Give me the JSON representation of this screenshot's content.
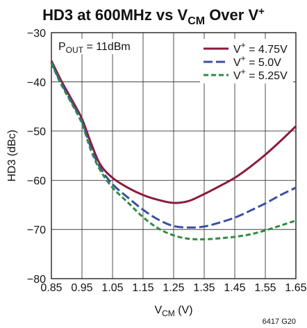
{
  "chart_data": {
    "type": "line",
    "title": {
      "main": "HD3 at 600MHz vs V",
      "sub": "CM",
      "mid": " Over V",
      "sup": "+"
    },
    "ylabel": "HD3 (dBc)",
    "xlabel": {
      "main": "V",
      "sub": "CM",
      "rest": " (V)"
    },
    "xlim": [
      0.85,
      1.65
    ],
    "ylim": [
      -80,
      -30
    ],
    "x_ticks": [
      "0.85",
      "0.95",
      "1.05",
      "1.15",
      "1.25",
      "1.35",
      "1.45",
      "1.55",
      "1.65"
    ],
    "y_ticks": [
      "−30",
      "−40",
      "−50",
      "−60",
      "−70",
      "−80"
    ],
    "grid": true,
    "annotation": {
      "main": "P",
      "sub": "OUT",
      "rest": " = 11dBm"
    },
    "figure_id": "6417 G20",
    "legend_position": "top-right",
    "series": [
      {
        "name": "V+ = 4.75V",
        "name_parts": {
          "pre": "V",
          "sup": "+",
          "post": " = 4.75V"
        },
        "color": "#8b1a3a",
        "dash": "solid",
        "x": [
          0.85,
          0.88,
          0.92,
          0.95,
          0.98,
          1.01,
          1.05,
          1.1,
          1.15,
          1.2,
          1.25,
          1.3,
          1.35,
          1.4,
          1.45,
          1.5,
          1.55,
          1.6,
          1.65
        ],
        "y": [
          -35.7,
          -39.5,
          -44.0,
          -47.5,
          -52.5,
          -56.8,
          -59.5,
          -61.5,
          -63.0,
          -64.0,
          -64.6,
          -64.2,
          -62.8,
          -61.2,
          -59.5,
          -57.3,
          -54.8,
          -52.0,
          -49.0
        ]
      },
      {
        "name": "V+ = 5.0V",
        "name_parts": {
          "pre": "V",
          "sup": "+",
          "post": " = 5.0V"
        },
        "color": "#3b4fa0",
        "dash": "long-dash",
        "x": [
          0.85,
          0.88,
          0.92,
          0.95,
          0.98,
          1.01,
          1.05,
          1.1,
          1.15,
          1.2,
          1.25,
          1.3,
          1.35,
          1.4,
          1.45,
          1.5,
          1.55,
          1.6,
          1.65
        ],
        "y": [
          -36.0,
          -40.0,
          -44.5,
          -48.0,
          -53.5,
          -57.5,
          -60.8,
          -63.5,
          -66.0,
          -68.0,
          -69.3,
          -69.6,
          -69.4,
          -68.6,
          -67.6,
          -66.2,
          -64.7,
          -63.0,
          -61.5
        ]
      },
      {
        "name": "V+ = 5.25V",
        "name_parts": {
          "pre": "V",
          "sup": "+",
          "post": " = 5.25V"
        },
        "color": "#2e8b3e",
        "dash": "short-dash",
        "x": [
          0.85,
          0.88,
          0.92,
          0.95,
          0.98,
          1.01,
          1.05,
          1.1,
          1.15,
          1.2,
          1.25,
          1.3,
          1.35,
          1.4,
          1.45,
          1.5,
          1.55,
          1.6,
          1.65
        ],
        "y": [
          -36.2,
          -40.3,
          -44.8,
          -48.5,
          -54.0,
          -58.0,
          -61.5,
          -64.5,
          -67.5,
          -69.8,
          -71.2,
          -71.9,
          -72.0,
          -71.8,
          -71.5,
          -71.0,
          -70.2,
          -69.2,
          -68.2
        ]
      }
    ]
  }
}
